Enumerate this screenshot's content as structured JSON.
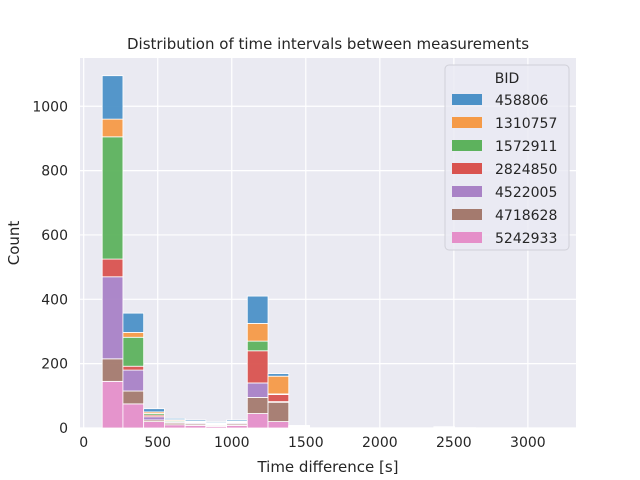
{
  "chart_data": {
    "type": "histogram-stacked",
    "title": "Distribution of time intervals between measurements",
    "xlabel": "Time difference [s]",
    "ylabel": "Count",
    "xlim": [
      -25,
      3325
    ],
    "ylim": [
      0,
      1150
    ],
    "xticks": [
      0,
      500,
      1000,
      1500,
      2000,
      2500,
      3000
    ],
    "yticks": [
      0,
      200,
      400,
      600,
      800,
      1000
    ],
    "grid": true,
    "legend": {
      "title": "BID",
      "position": "top-right"
    },
    "series_order_bottom_to_top": [
      "5242933",
      "4718628",
      "4522005",
      "2824850",
      "1572911",
      "1310757",
      "458806"
    ],
    "series": [
      {
        "name": "458806",
        "color": "#4c91c7"
      },
      {
        "name": "1310757",
        "color": "#f59a47"
      },
      {
        "name": "1572911",
        "color": "#5db25d"
      },
      {
        "name": "2824850",
        "color": "#d9534f"
      },
      {
        "name": "4522005",
        "color": "#a982c6"
      },
      {
        "name": "4718628",
        "color": "#a47a6e"
      },
      {
        "name": "5242933",
        "color": "#e58fc9"
      }
    ],
    "bins": [
      {
        "x0": 125,
        "x1": 265,
        "counts": {
          "5242933": 145,
          "4718628": 70,
          "4522005": 255,
          "2824850": 55,
          "1572911": 380,
          "1310757": 55,
          "458806": 135
        }
      },
      {
        "x0": 265,
        "x1": 405,
        "counts": {
          "5242933": 75,
          "4718628": 40,
          "4522005": 65,
          "2824850": 12,
          "1572911": 90,
          "1310757": 15,
          "458806": 60
        }
      },
      {
        "x0": 405,
        "x1": 545,
        "counts": {
          "5242933": 20,
          "4718628": 5,
          "4522005": 10,
          "2824850": 5,
          "1572911": 5,
          "1310757": 5,
          "458806": 10
        }
      },
      {
        "x0": 545,
        "x1": 685,
        "counts": {
          "5242933": 10,
          "4718628": 5,
          "4522005": 3,
          "2824850": 2,
          "1572911": 3,
          "1310757": 3,
          "458806": 4
        }
      },
      {
        "x0": 685,
        "x1": 825,
        "counts": {
          "5242933": 8,
          "4718628": 4,
          "4522005": 3,
          "2824850": 2,
          "1572911": 2,
          "1310757": 2,
          "458806": 4
        }
      },
      {
        "x0": 825,
        "x1": 965,
        "counts": {
          "5242933": 5,
          "4718628": 3,
          "4522005": 2,
          "2824850": 2,
          "1572911": 2,
          "1310757": 2,
          "458806": 3
        }
      },
      {
        "x0": 965,
        "x1": 1105,
        "counts": {
          "5242933": 8,
          "4718628": 4,
          "4522005": 3,
          "2824850": 2,
          "1572911": 2,
          "1310757": 2,
          "458806": 4
        }
      },
      {
        "x0": 1105,
        "x1": 1245,
        "counts": {
          "5242933": 45,
          "4718628": 50,
          "4522005": 45,
          "2824850": 100,
          "1572911": 30,
          "1310757": 55,
          "458806": 85
        }
      },
      {
        "x0": 1245,
        "x1": 1385,
        "counts": {
          "5242933": 20,
          "4718628": 60,
          "4522005": 2,
          "2824850": 22,
          "1572911": 2,
          "1310757": 55,
          "458806": 8
        }
      },
      {
        "x0": 1385,
        "x1": 1525,
        "counts": {
          "5242933": 2,
          "4718628": 1,
          "4522005": 1,
          "2824850": 1,
          "1572911": 1,
          "1310757": 1,
          "458806": 1
        }
      },
      {
        "x0": 2365,
        "x1": 2505,
        "counts": {
          "5242933": 2,
          "4718628": 1,
          "4522005": 0,
          "2824850": 0,
          "1572911": 0,
          "1310757": 0,
          "458806": 1
        }
      },
      {
        "x0": 2505,
        "x1": 2645,
        "counts": {
          "5242933": 1,
          "4718628": 0,
          "4522005": 0,
          "2824850": 0,
          "1572911": 0,
          "1310757": 0,
          "458806": 0
        }
      }
    ]
  }
}
